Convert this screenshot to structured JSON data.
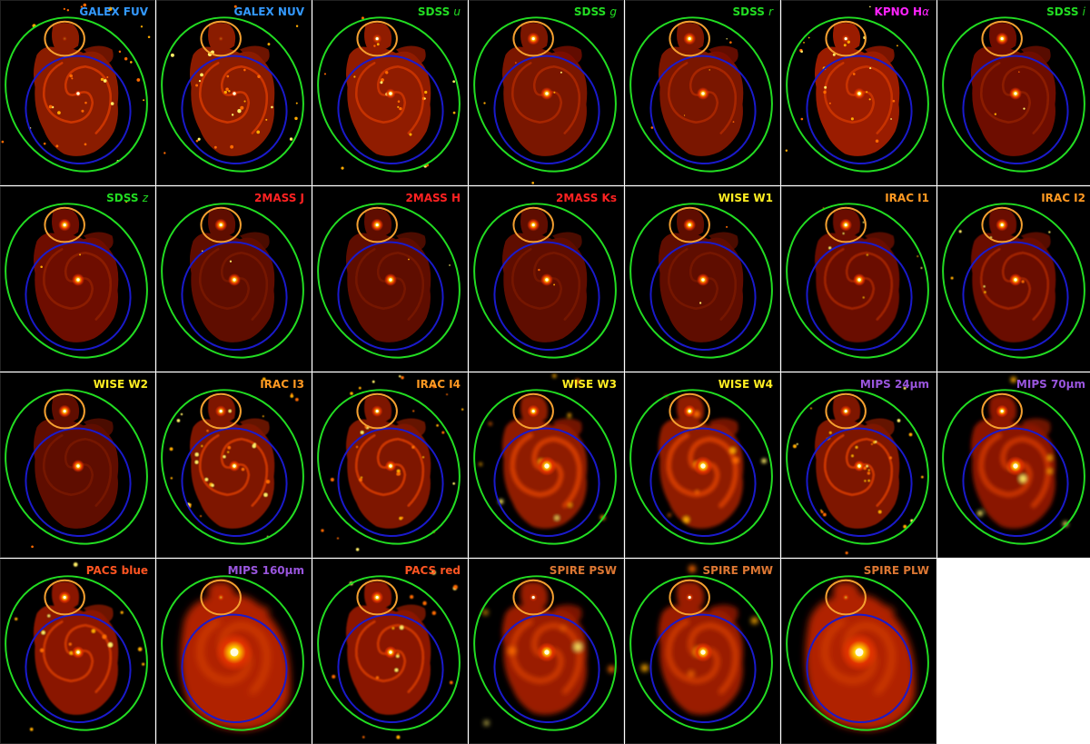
{
  "figure": {
    "colors": {
      "background": "#000000",
      "outer_aperture": "#22dd22",
      "companion_aperture": "#f5a030",
      "main_aperture": "#1a1acc"
    },
    "panels": [
      {
        "band_text": "GALEX FUV",
        "band_suffix": "",
        "color": "#3399ff",
        "style": "uv"
      },
      {
        "band_text": "GALEX NUV",
        "band_suffix": "",
        "color": "#3399ff",
        "style": "uv"
      },
      {
        "band_text": "SDSS ",
        "band_suffix": "u",
        "color": "#22dd22",
        "style": "uband"
      },
      {
        "band_text": "SDSS ",
        "band_suffix": "g",
        "color": "#22dd22",
        "style": "optical"
      },
      {
        "band_text": "SDSS ",
        "band_suffix": "r",
        "color": "#22dd22",
        "style": "optical"
      },
      {
        "band_text": "KPNO H",
        "band_suffix": "α",
        "color": "#ff22ff",
        "style": "halpha"
      },
      {
        "band_text": "SDSS ",
        "band_suffix": "i",
        "color": "#22dd22",
        "style": "red"
      },
      {
        "band_text": "SDSS ",
        "band_suffix": "z",
        "color": "#22dd22",
        "style": "red"
      },
      {
        "band_text": "2MASS J",
        "band_suffix": "",
        "color": "#ff2222",
        "style": "nir"
      },
      {
        "band_text": "2MASS H",
        "band_suffix": "",
        "color": "#ff2222",
        "style": "nir"
      },
      {
        "band_text": "2MASS Ks",
        "band_suffix": "",
        "color": "#ff2222",
        "style": "nir"
      },
      {
        "band_text": "WISE W1",
        "band_suffix": "",
        "color": "#ffee22",
        "style": "nir"
      },
      {
        "band_text": "IRAC I1",
        "band_suffix": "",
        "color": "#ff9922",
        "style": "irac"
      },
      {
        "band_text": "IRAC I2",
        "band_suffix": "",
        "color": "#ff9922",
        "style": "irac"
      },
      {
        "band_text": "WISE W2",
        "band_suffix": "",
        "color": "#ffee22",
        "style": "nir"
      },
      {
        "band_text": "IRAC I3",
        "band_suffix": "",
        "color": "#ff9922",
        "style": "pah"
      },
      {
        "band_text": "IRAC I4",
        "band_suffix": "",
        "color": "#ff9922",
        "style": "pah"
      },
      {
        "band_text": "WISE W3",
        "band_suffix": "",
        "color": "#ffee22",
        "style": "midir"
      },
      {
        "band_text": "WISE W4",
        "band_suffix": "",
        "color": "#ffee22",
        "style": "midir"
      },
      {
        "band_text": "MIPS 24",
        "band_suffix": "μm",
        "color": "#9955dd",
        "style": "pah"
      },
      {
        "band_text": "MIPS 70",
        "band_suffix": "μm",
        "color": "#9955dd",
        "style": "farir"
      },
      {
        "band_text": "PACS blue",
        "band_suffix": "",
        "color": "#ff5522",
        "style": "pacs"
      },
      {
        "band_text": "MIPS 160",
        "band_suffix": "μm",
        "color": "#9955dd",
        "style": "blob"
      },
      {
        "band_text": "PACS red",
        "band_suffix": "",
        "color": "#ff5522",
        "style": "pacs"
      },
      {
        "band_text": "SPIRE PSW",
        "band_suffix": "",
        "color": "#dd7733",
        "style": "spire"
      },
      {
        "band_text": "SPIRE PMW",
        "band_suffix": "",
        "color": "#dd7733",
        "style": "spire"
      },
      {
        "band_text": "SPIRE PLW",
        "band_suffix": "",
        "color": "#dd7733",
        "style": "blob"
      }
    ]
  }
}
